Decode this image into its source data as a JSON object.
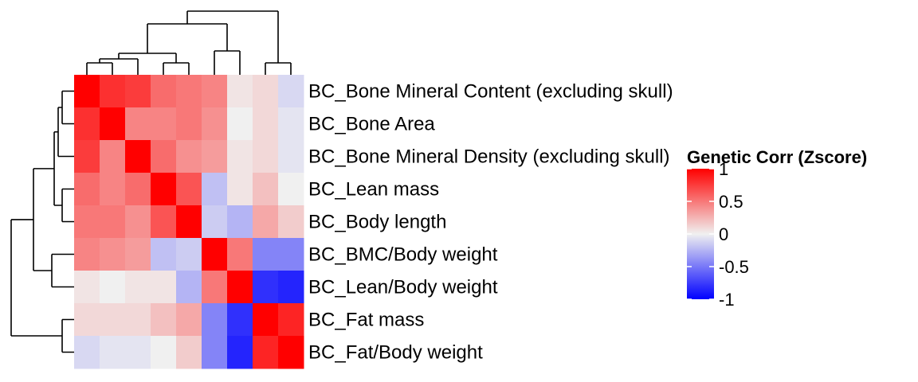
{
  "chart_data": {
    "type": "heatmap",
    "title": "",
    "row_labels": [
      "BC_Bone Mineral Content (excluding skull)",
      "BC_Bone Area",
      "BC_Bone Mineral Density (excluding skull)",
      "BC_Lean mass",
      "BC_Body length",
      "BC_BMC/Body weight",
      "BC_Lean/Body weight",
      "BC_Fat mass",
      "BC_Fat/Body weight"
    ],
    "values": [
      [
        1.0,
        0.8,
        0.75,
        0.55,
        0.5,
        0.45,
        0.05,
        0.1,
        -0.1
      ],
      [
        0.8,
        1.0,
        0.45,
        0.45,
        0.5,
        0.4,
        0.0,
        0.1,
        -0.05
      ],
      [
        0.75,
        0.45,
        1.0,
        0.55,
        0.4,
        0.35,
        0.05,
        0.1,
        -0.05
      ],
      [
        0.55,
        0.45,
        0.55,
        1.0,
        0.65,
        -0.2,
        0.05,
        0.2,
        0.0
      ],
      [
        0.5,
        0.5,
        0.4,
        0.65,
        1.0,
        -0.15,
        -0.25,
        0.3,
        0.15
      ],
      [
        0.45,
        0.4,
        0.35,
        -0.2,
        -0.15,
        1.0,
        0.5,
        -0.45,
        -0.45
      ],
      [
        0.05,
        0.0,
        0.05,
        0.05,
        -0.25,
        0.5,
        1.0,
        -0.8,
        -0.85
      ],
      [
        0.1,
        0.1,
        0.1,
        0.2,
        0.3,
        -0.45,
        -0.8,
        1.0,
        0.85
      ],
      [
        -0.1,
        -0.05,
        -0.05,
        0.0,
        0.15,
        -0.45,
        -0.85,
        0.85,
        1.0
      ]
    ],
    "legend": {
      "title": "Genetic Corr (Zscore)",
      "ticks": [
        "1",
        "0.5",
        "0",
        "-0.5",
        "-1"
      ],
      "tick_values": [
        1,
        0.5,
        0,
        -0.5,
        -1
      ],
      "range": [
        -1,
        1
      ]
    },
    "colors": {
      "low": "#0000ff",
      "mid": "#f0f0f0",
      "high": "#ff0000"
    },
    "dendrogram": "hierarchical clustering of rows and columns"
  }
}
